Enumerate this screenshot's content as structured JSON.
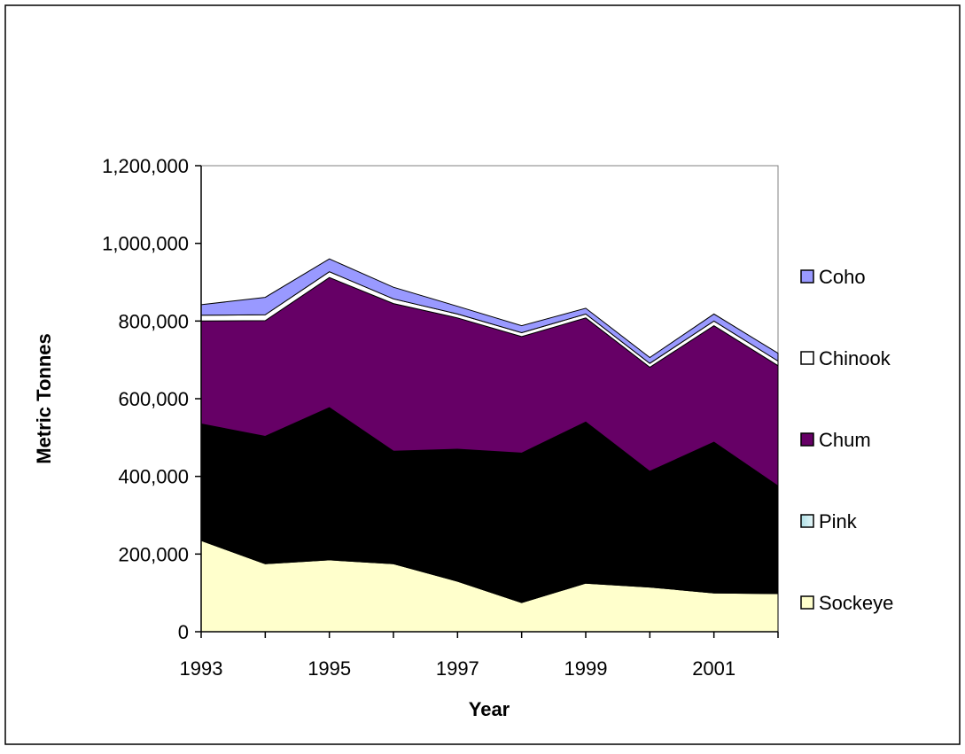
{
  "chart_data": {
    "type": "area",
    "stacked": true,
    "title": "",
    "xlabel": "Year",
    "ylabel": "Metric Tonnes",
    "x": [
      1993,
      1994,
      1995,
      1996,
      1997,
      1998,
      1999,
      2000,
      2001,
      2002
    ],
    "x_tick_labels": [
      "1993",
      "1995",
      "1997",
      "1999",
      "2001"
    ],
    "y_tick_labels": [
      "0",
      "200,000",
      "400,000",
      "600,000",
      "800,000",
      "1,000,000",
      "1,200,000"
    ],
    "ylim": [
      0,
      1200000
    ],
    "grid": false,
    "legend_position": "right",
    "series": [
      {
        "name": "Sockeye",
        "color": "#FFFFCC",
        "values": [
          235000,
          175000,
          185000,
          175000,
          130000,
          75000,
          125000,
          115000,
          100000,
          98000
        ]
      },
      {
        "name": "Pink",
        "color": "#000000",
        "values": [
          300000,
          328000,
          392000,
          290000,
          340000,
          385000,
          415000,
          298000,
          388000,
          277000
        ]
      },
      {
        "name": "Chum",
        "color": "#660066",
        "values": [
          265000,
          298000,
          335000,
          380000,
          338000,
          300000,
          268000,
          268000,
          300000,
          310000
        ]
      },
      {
        "name": "Chinook",
        "color": "#FFFFFF",
        "values": [
          15000,
          15000,
          15000,
          12000,
          10000,
          10000,
          10000,
          10000,
          12000,
          12000
        ]
      },
      {
        "name": "Coho",
        "color": "#9999FF",
        "values": [
          27000,
          45000,
          33000,
          30000,
          20000,
          18000,
          15000,
          15000,
          18000,
          20000
        ]
      }
    ],
    "legend_order": [
      "Coho",
      "Chinook",
      "Chum",
      "Pink",
      "Sockeye"
    ]
  }
}
